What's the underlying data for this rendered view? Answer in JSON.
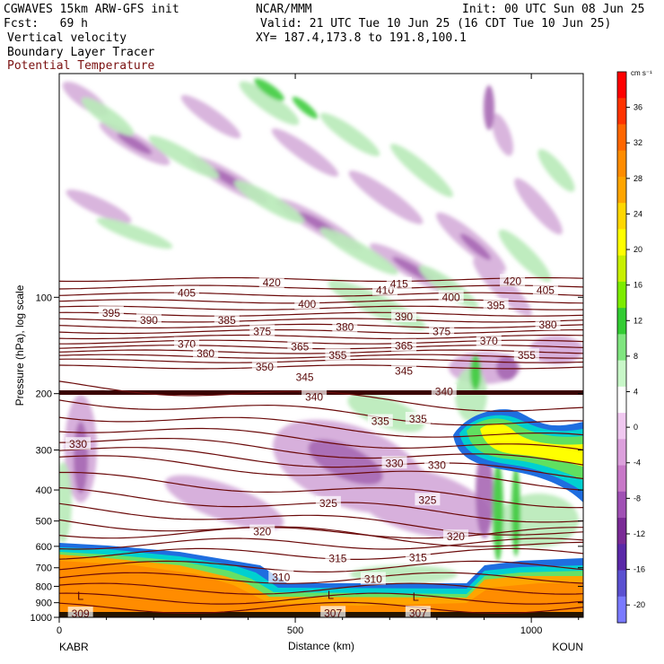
{
  "header": {
    "model": "CGWAVES 15km ARW-GFS init",
    "org": "NCAR/MMM",
    "init": "Init: 00 UTC Sun 08 Jun 25",
    "fcst": "Fcst:   69 h",
    "valid": "Valid: 21 UTC Tue 10 Jun 25 (16 CDT Tue 10 Jun 25)",
    "xy": "XY= 187.4,173.8 to 191.8,100.1",
    "field1": "Vertical velocity",
    "field2": "Boundary Layer Tracer",
    "field3": "Potential Temperature"
  },
  "colors": {
    "contour": "#6b0a0a",
    "terrain": "#ff8c00",
    "field3_label": "#8b1a1a"
  },
  "chart_data": {
    "type": "heatmap",
    "ylabel": "Pressure (hPa), log scale",
    "xlabel": "Distance (km)",
    "x_ticks": [
      "0",
      "500",
      "1000"
    ],
    "xlim": [
      0,
      1110
    ],
    "y_ticks": [
      "100",
      "200",
      "300",
      "400",
      "500",
      "600",
      "700",
      "800",
      "900",
      "1000"
    ],
    "y_tick_values": [
      100,
      200,
      300,
      400,
      500,
      600,
      700,
      800,
      900,
      1000
    ],
    "ylim": [
      1000,
      20
    ],
    "y_scale": "log",
    "left_endpoint": "KABR",
    "right_endpoint": "KOUN",
    "colorbar": {
      "units": "cm s⁻¹",
      "tick_labels": [
        "36",
        "32",
        "28",
        "24",
        "20",
        "16",
        "12",
        "8",
        "4",
        "0",
        "-4",
        "-8",
        "-12",
        "-16",
        "-20"
      ],
      "tick_values": [
        36,
        32,
        28,
        24,
        20,
        16,
        12,
        8,
        4,
        0,
        -4,
        -8,
        -12,
        -16,
        -20
      ],
      "colors": [
        "#ff0000",
        "#ff3300",
        "#ff6600",
        "#ff8c00",
        "#ffa500",
        "#ffd700",
        "#ffff00",
        "#c8f000",
        "#7cec00",
        "#33cc33",
        "#7fe57f",
        "#c8f7c8",
        "#ffffff",
        "#f0c8f0",
        "#dca0dc",
        "#c878c8",
        "#a050b4",
        "#7a2a96",
        "#5a28a8",
        "#5a50d0",
        "#7a7aff"
      ]
    },
    "theta_labels": [
      {
        "text": "420",
        "x": 450,
        "p": 90
      },
      {
        "text": "405",
        "x": 270,
        "p": 97
      },
      {
        "text": "410",
        "x": 690,
        "p": 95
      },
      {
        "text": "415",
        "x": 720,
        "p": 91
      },
      {
        "text": "420",
        "x": 960,
        "p": 89
      },
      {
        "text": "405",
        "x": 1030,
        "p": 95
      },
      {
        "text": "395",
        "x": 110,
        "p": 112
      },
      {
        "text": "390",
        "x": 190,
        "p": 118
      },
      {
        "text": "385",
        "x": 355,
        "p": 118
      },
      {
        "text": "400",
        "x": 525,
        "p": 105
      },
      {
        "text": "400",
        "x": 830,
        "p": 100
      },
      {
        "text": "395",
        "x": 925,
        "p": 106
      },
      {
        "text": "380",
        "x": 605,
        "p": 124
      },
      {
        "text": "390",
        "x": 730,
        "p": 115
      },
      {
        "text": "375",
        "x": 430,
        "p": 128
      },
      {
        "text": "375",
        "x": 810,
        "p": 128
      },
      {
        "text": "380",
        "x": 1035,
        "p": 122
      },
      {
        "text": "370",
        "x": 270,
        "p": 140
      },
      {
        "text": "365",
        "x": 510,
        "p": 143
      },
      {
        "text": "365",
        "x": 730,
        "p": 142
      },
      {
        "text": "370",
        "x": 910,
        "p": 137
      },
      {
        "text": "360",
        "x": 310,
        "p": 150
      },
      {
        "text": "355",
        "x": 590,
        "p": 152
      },
      {
        "text": "355",
        "x": 990,
        "p": 152
      },
      {
        "text": "350",
        "x": 435,
        "p": 165
      },
      {
        "text": "345",
        "x": 520,
        "p": 178
      },
      {
        "text": "345",
        "x": 730,
        "p": 170
      },
      {
        "text": "340",
        "x": 540,
        "p": 205
      },
      {
        "text": "340",
        "x": 815,
        "p": 197
      },
      {
        "text": "335",
        "x": 680,
        "p": 244
      },
      {
        "text": "335",
        "x": 760,
        "p": 240
      },
      {
        "text": "330",
        "x": 40,
        "p": 288
      },
      {
        "text": "330",
        "x": 710,
        "p": 330
      },
      {
        "text": "330",
        "x": 800,
        "p": 335
      },
      {
        "text": "325",
        "x": 570,
        "p": 440
      },
      {
        "text": "325",
        "x": 780,
        "p": 430
      },
      {
        "text": "320",
        "x": 430,
        "p": 540
      },
      {
        "text": "320",
        "x": 840,
        "p": 560
      },
      {
        "text": "315",
        "x": 590,
        "p": 655
      },
      {
        "text": "315",
        "x": 760,
        "p": 650
      },
      {
        "text": "310",
        "x": 470,
        "p": 750
      },
      {
        "text": "310",
        "x": 665,
        "p": 760
      },
      {
        "text": "309",
        "x": 45,
        "p": 975
      },
      {
        "text": "307",
        "x": 580,
        "p": 970
      },
      {
        "text": "307",
        "x": 760,
        "p": 970
      }
    ],
    "low_markers": [
      {
        "text": "L",
        "x": 45,
        "p": 860
      },
      {
        "text": "L",
        "x": 575,
        "p": 855
      },
      {
        "text": "L",
        "x": 755,
        "p": 865
      }
    ]
  }
}
